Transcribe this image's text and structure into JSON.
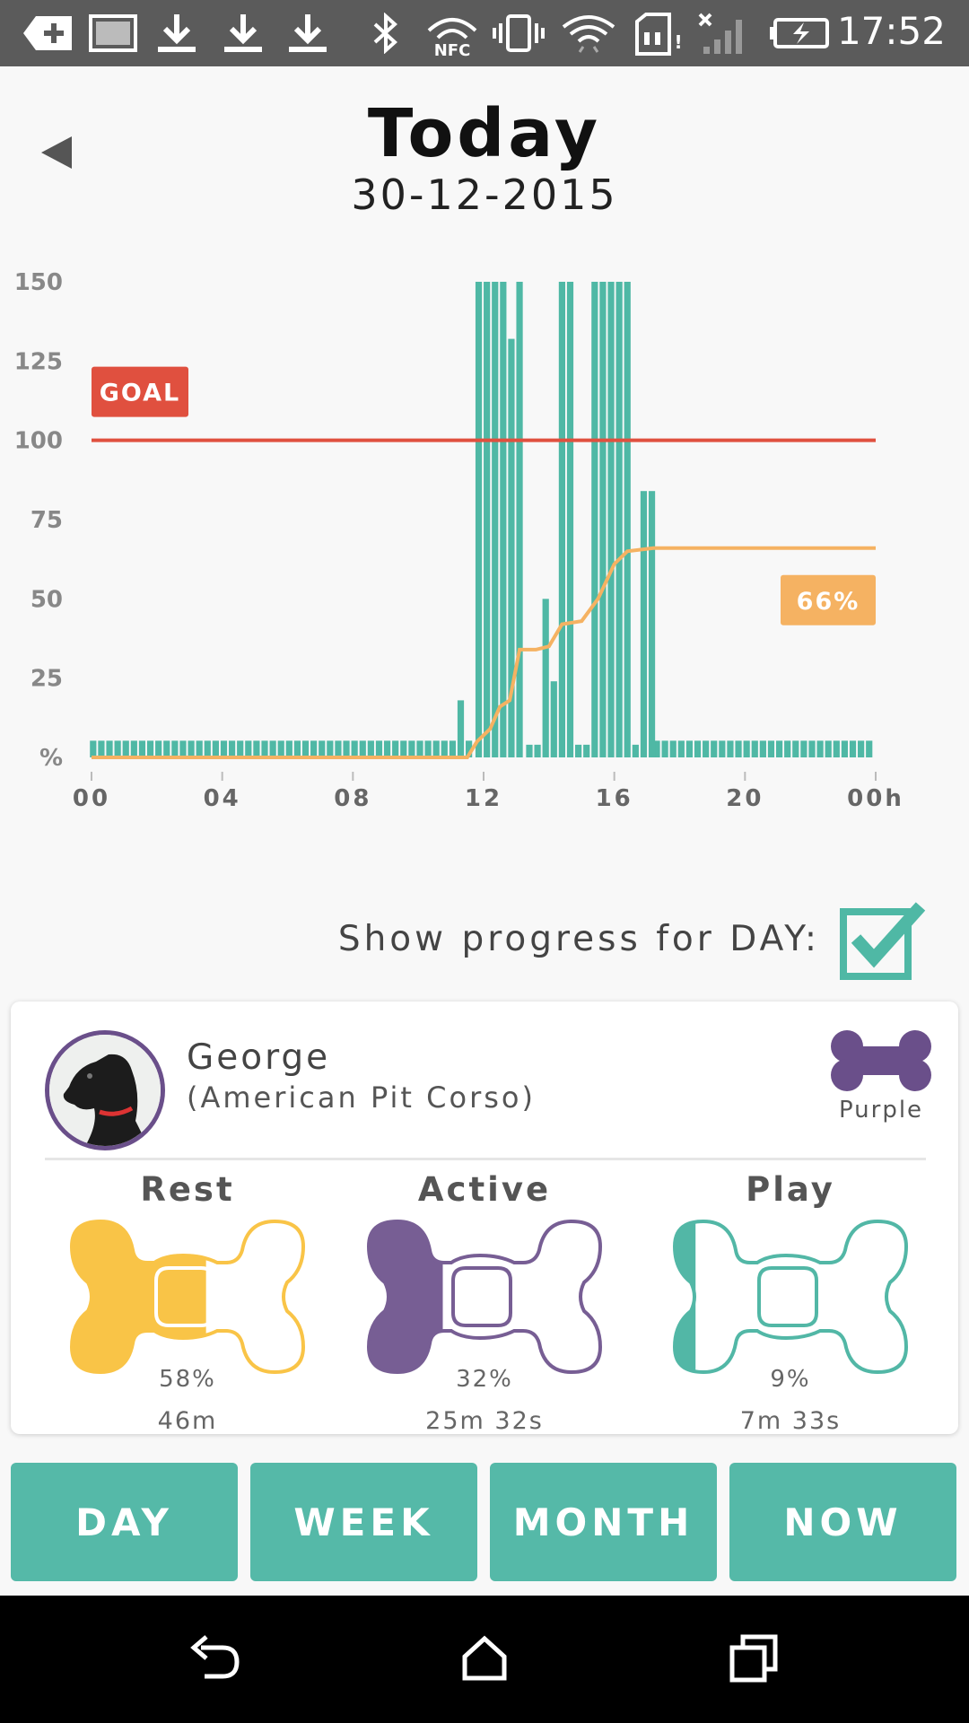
{
  "status_bar": {
    "time": "17:52",
    "icons": [
      "add-notification-icon",
      "image-notification-icon",
      "download-icon",
      "download-icon",
      "download-icon",
      "bluetooth-icon",
      "nfc-icon",
      "vibrate-icon",
      "wifi-icon",
      "sd-card-icon",
      "no-signal-icon",
      "battery-charging-icon"
    ]
  },
  "header": {
    "title": "Today",
    "date": "30-12-2015"
  },
  "chart_data": {
    "type": "bar",
    "x_tick_labels": [
      "00",
      "04",
      "08",
      "12",
      "16",
      "20",
      "00h"
    ],
    "y_tick_labels": [
      "150",
      "125",
      "100",
      "75",
      "50",
      "25",
      "%"
    ],
    "ylim": [
      0,
      150
    ],
    "xlim_hours": [
      0,
      24
    ],
    "goal": 100,
    "goal_label": "GOAL",
    "progress_label": "66%",
    "colors": {
      "bars": "#4fb8a5",
      "goal": "#e0503f",
      "progress": "#f5b262"
    },
    "bars_hourly_values": [
      {
        "x": 11.3,
        "v": 18
      },
      {
        "x": 11.85,
        "v": 150
      },
      {
        "x": 12.1,
        "v": 150
      },
      {
        "x": 12.35,
        "v": 150
      },
      {
        "x": 12.6,
        "v": 150
      },
      {
        "x": 12.85,
        "v": 132
      },
      {
        "x": 13.1,
        "v": 150
      },
      {
        "x": 13.4,
        "v": 4
      },
      {
        "x": 13.65,
        "v": 4
      },
      {
        "x": 13.9,
        "v": 50
      },
      {
        "x": 14.15,
        "v": 24
      },
      {
        "x": 14.4,
        "v": 150
      },
      {
        "x": 14.65,
        "v": 150
      },
      {
        "x": 14.9,
        "v": 4
      },
      {
        "x": 15.15,
        "v": 4
      },
      {
        "x": 15.4,
        "v": 150
      },
      {
        "x": 15.65,
        "v": 150
      },
      {
        "x": 15.9,
        "v": 150
      },
      {
        "x": 16.15,
        "v": 150
      },
      {
        "x": 16.4,
        "v": 150
      },
      {
        "x": 16.65,
        "v": 4
      },
      {
        "x": 16.9,
        "v": 84
      },
      {
        "x": 17.15,
        "v": 84
      }
    ],
    "baseline_value": 3,
    "progress_series": [
      {
        "x": 0,
        "y": 0
      },
      {
        "x": 11.5,
        "y": 0
      },
      {
        "x": 11.8,
        "y": 5
      },
      {
        "x": 12.2,
        "y": 9
      },
      {
        "x": 12.5,
        "y": 16
      },
      {
        "x": 12.8,
        "y": 18
      },
      {
        "x": 13.1,
        "y": 34
      },
      {
        "x": 13.6,
        "y": 34
      },
      {
        "x": 14.0,
        "y": 35
      },
      {
        "x": 14.4,
        "y": 42
      },
      {
        "x": 15.0,
        "y": 43
      },
      {
        "x": 15.5,
        "y": 50
      },
      {
        "x": 16.0,
        "y": 61
      },
      {
        "x": 16.4,
        "y": 65
      },
      {
        "x": 17.2,
        "y": 66
      },
      {
        "x": 24,
        "y": 66
      }
    ]
  },
  "progress_toggle": {
    "label": "Show progress for DAY:",
    "checked": true
  },
  "dog": {
    "name": "George",
    "breed": "(American Pit Corso)",
    "bone_color_label": "Purple",
    "bone_color": "#6a4f8a"
  },
  "stats": [
    {
      "label": "Rest",
      "percent": "58%",
      "duration": "46m",
      "fraction": 0.58,
      "color": "#f9c447"
    },
    {
      "label": "Active",
      "percent": "32%",
      "duration": "25m 32s",
      "fraction": 0.32,
      "color": "#775e94"
    },
    {
      "label": "Play",
      "percent": "9%",
      "duration": "7m 33s",
      "fraction": 0.09,
      "color": "#52b7a6"
    }
  ],
  "tabs": [
    {
      "label": "DAY"
    },
    {
      "label": "WEEK"
    },
    {
      "label": "MONTH"
    },
    {
      "label": "NOW"
    }
  ]
}
